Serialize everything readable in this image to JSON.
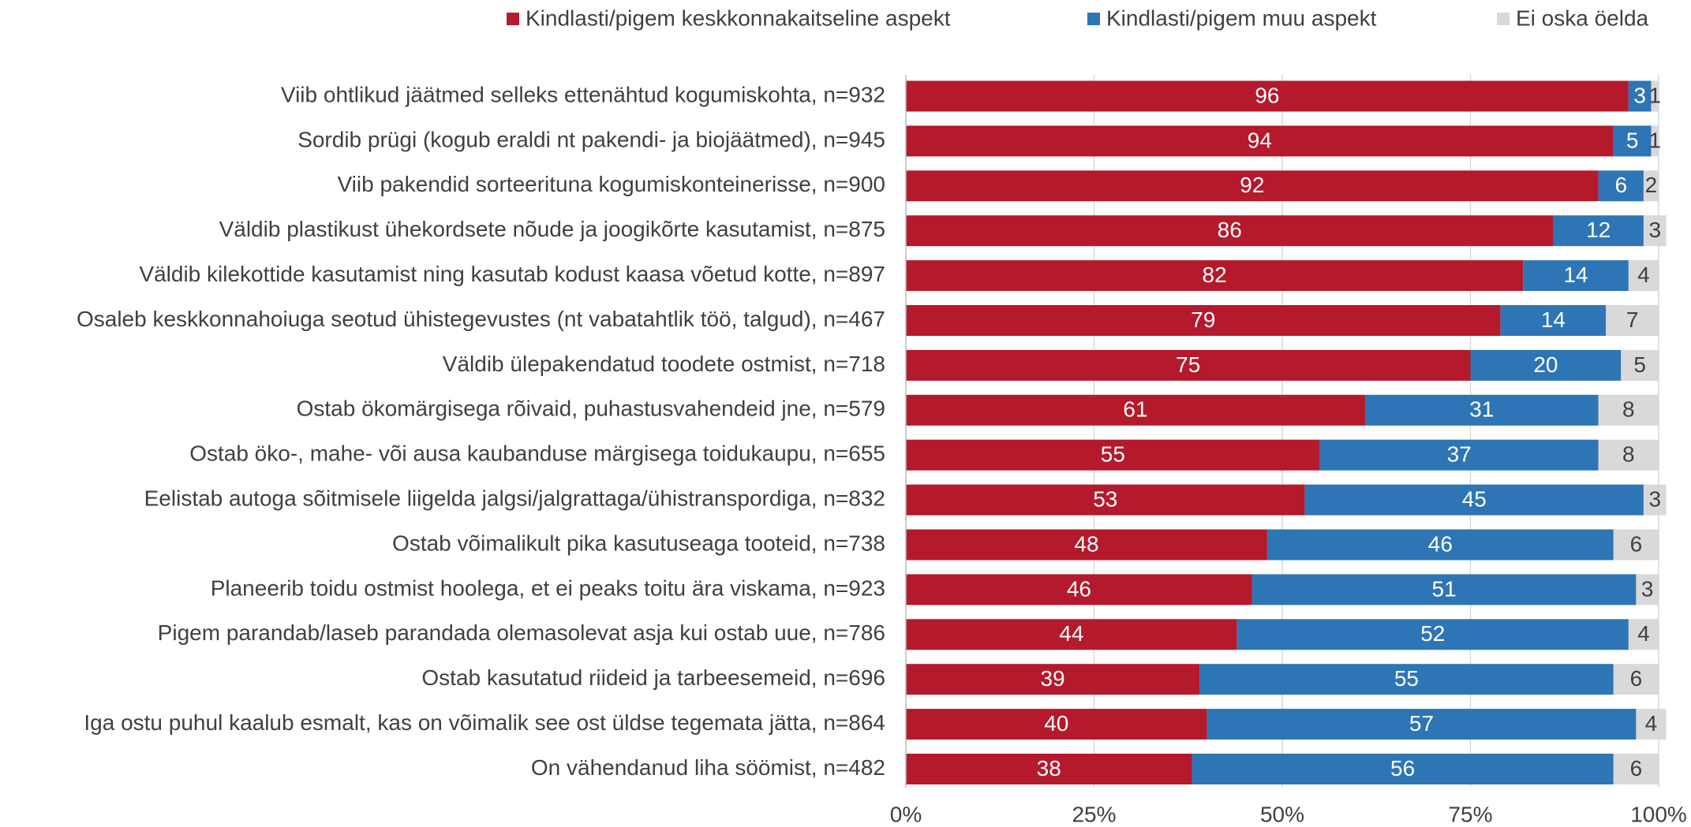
{
  "chart_data": {
    "type": "stacked-bar-horizontal",
    "categories": [
      "Viib ohtlikud jäätmed  selleks ettenähtud kogumiskohta, n=932",
      "Sordib prügi (kogub eraldi nt pakendi- ja biojäätmed), n=945",
      "Viib pakendid sorteerituna kogumiskonteinerisse, n=900",
      "Väldib plastikust ühekordsete nõude ja joogikõrte kasutamist, n=875",
      "Väldib kilekottide kasutamist ning kasutab kodust kaasa võetud kotte, n=897",
      "Osaleb keskkonnahoiuga seotud ühistegevustes (nt vabatahtlik töö, talgud), n=467",
      "Väldib ülepakendatud toodete ostmist, n=718",
      "Ostab ökomärgisega rõivaid, puhastusvahendeid jne, n=579",
      "Ostab öko-, mahe- või ausa kaubanduse märgisega toidukaupu, n=655",
      "Eelistab autoga sõitmisele liigelda jalgsi/jalgrattaga/ühistranspordiga, n=832",
      "Ostab võimalikult pika kasutuseaga tooteid, n=738",
      "Planeerib toidu ostmist hoolega, et ei peaks toitu ära viskama, n=923",
      "Pigem parandab/laseb parandada olemasolevat asja kui ostab uue, n=786",
      "Ostab kasutatud riideid ja tarbeesemeid, n=696",
      "Iga ostu puhul kaalub esmalt, kas on võimalik see ost üldse tegemata jätta, n=864",
      "On vähendanud liha söömist, n=482"
    ],
    "series": [
      {
        "name": "Kindlasti/pigem keskkonnakaitseline aspekt",
        "color": "#b5192c",
        "values": [
          96,
          94,
          92,
          86,
          82,
          79,
          75,
          61,
          55,
          53,
          48,
          46,
          44,
          39,
          40,
          38
        ]
      },
      {
        "name": "Kindlasti/pigem muu aspekt",
        "color": "#2e75b6",
        "values": [
          3,
          5,
          6,
          12,
          14,
          14,
          20,
          31,
          37,
          45,
          46,
          51,
          52,
          55,
          57,
          56
        ]
      },
      {
        "name": "Ei oska öelda",
        "color": "#d9d9d9",
        "values": [
          1,
          1,
          2,
          3,
          4,
          7,
          5,
          8,
          8,
          3,
          6,
          3,
          4,
          6,
          4,
          6
        ]
      }
    ],
    "xlim": [
      0,
      100
    ],
    "xticks": [
      {
        "value": 0,
        "label": "0%"
      },
      {
        "value": 25,
        "label": "25%"
      },
      {
        "value": 50,
        "label": "50%"
      },
      {
        "value": 75,
        "label": "75%"
      },
      {
        "value": 100,
        "label": "100%"
      }
    ],
    "grid": true,
    "legend": "top"
  }
}
